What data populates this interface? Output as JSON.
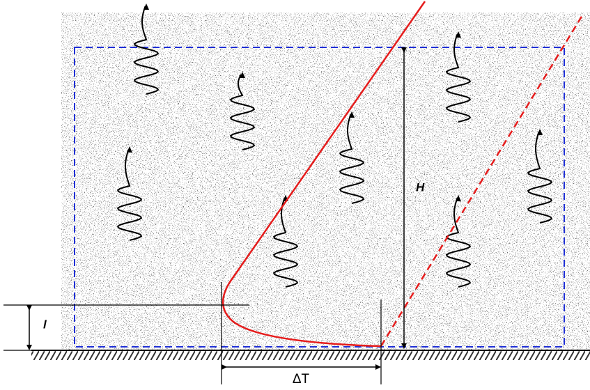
{
  "labels": {
    "height": "H",
    "layer": "l",
    "delta_t": "ΔT"
  }
}
